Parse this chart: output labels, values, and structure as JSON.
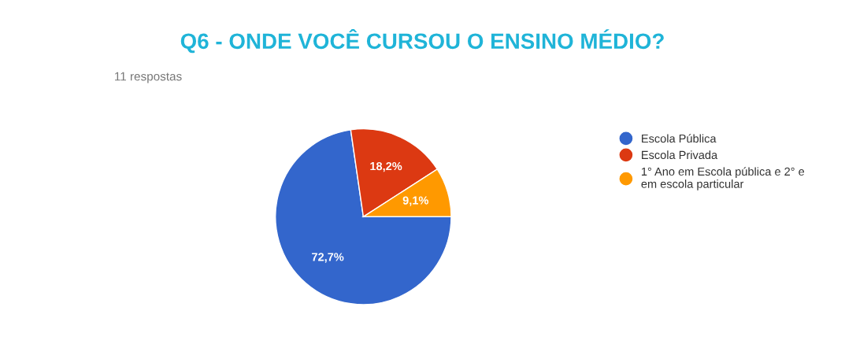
{
  "chart_data": {
    "type": "pie",
    "title": "Q6 - ONDE VOCÊ CURSOU O ENSINO MÉDIO?",
    "subtitle": "11 respostas",
    "categories": [
      "Escola Pública",
      "Escola Privada",
      "1° Ano em Escola pública e 2° e\nem escola particular"
    ],
    "values": [
      72.7,
      18.2,
      9.1
    ],
    "value_labels": [
      "72,7%",
      "18,2%",
      "9,1%"
    ],
    "colors": [
      "#3366cc",
      "#dc3912",
      "#ff9900"
    ],
    "legend": "right"
  }
}
